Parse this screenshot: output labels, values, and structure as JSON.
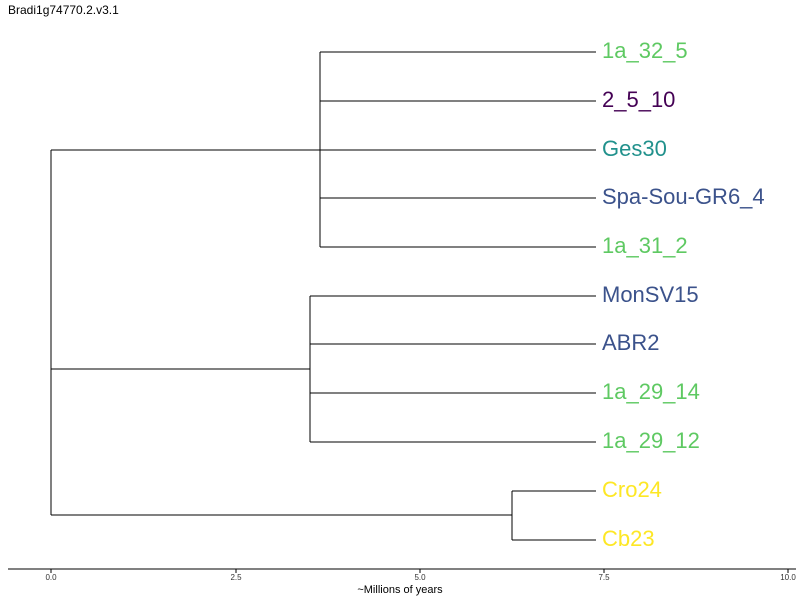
{
  "title": "Bradi1g74770.2.v3.1",
  "axis": {
    "label": "~Millions of years",
    "ticks": [
      "0.0",
      "2.5",
      "5.0",
      "7.5",
      "10.0"
    ]
  },
  "leaves": [
    {
      "label": "1a_32_5",
      "color": "#5ec962"
    },
    {
      "label": "2_5_10",
      "color": "#440154"
    },
    {
      "label": "Ges30",
      "color": "#21918c"
    },
    {
      "label": "Spa-Sou-GR6_4",
      "color": "#3b528b"
    },
    {
      "label": "1a_31_2",
      "color": "#5ec962"
    },
    {
      "label": "MonSV15",
      "color": "#3b528b"
    },
    {
      "label": "ABR2",
      "color": "#3b528b"
    },
    {
      "label": "1a_29_14",
      "color": "#5ec962"
    },
    {
      "label": "1a_29_12",
      "color": "#5ec962"
    },
    {
      "label": "Cro24",
      "color": "#fde725"
    },
    {
      "label": "Cb23",
      "color": "#fde725"
    }
  ]
}
